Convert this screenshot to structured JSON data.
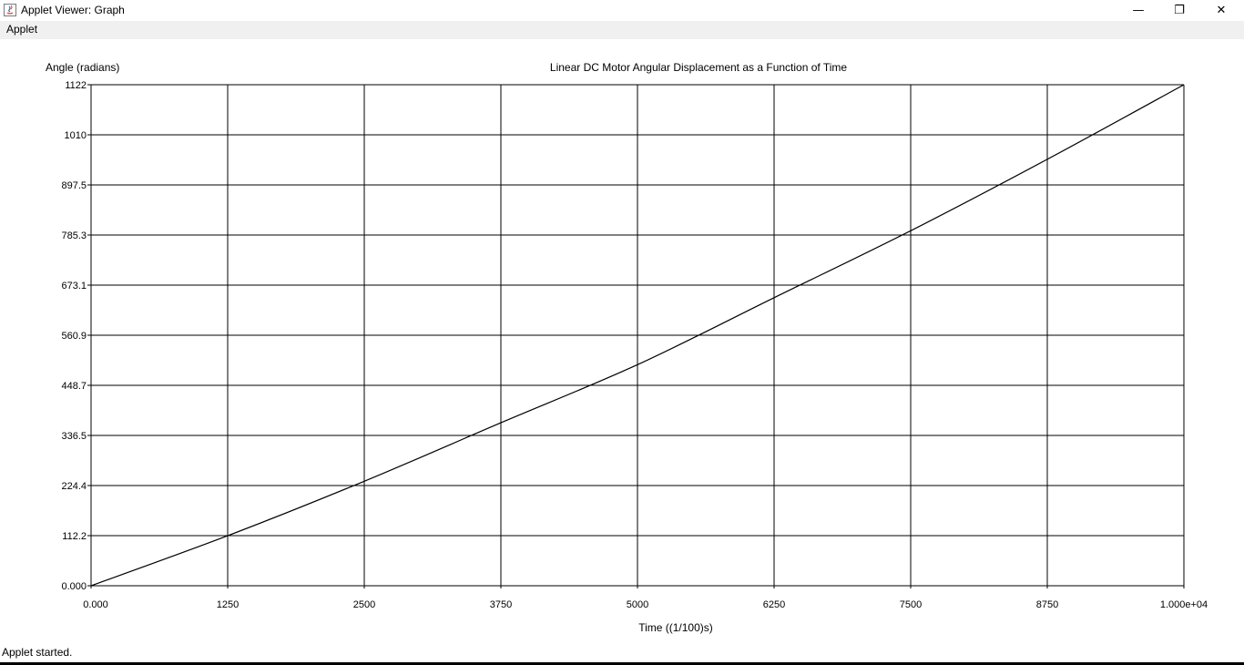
{
  "window": {
    "title": "Applet Viewer: Graph",
    "controls": {
      "minimize": "—",
      "maximize": "❐",
      "close": "✕"
    }
  },
  "menu": {
    "items": [
      "Applet"
    ]
  },
  "status_bar": {
    "text": "Applet started."
  },
  "chart_data": {
    "type": "line",
    "title": "Linear DC Motor Angular Displacement as a Function of Time",
    "xlabel": "Time ((1/100)s)",
    "ylabel": "Angle (radians)",
    "xlim": [
      0,
      10000
    ],
    "ylim": [
      0,
      1122
    ],
    "x_ticks": [
      "0.000",
      "1250",
      "2500",
      "3750",
      "5000",
      "6250",
      "7500",
      "8750",
      "1.000e+04"
    ],
    "y_ticks": [
      "0.000",
      "112.2",
      "224.4",
      "336.5",
      "448.7",
      "560.9",
      "673.1",
      "785.3",
      "897.5",
      "1010",
      "1122"
    ],
    "grid": true,
    "line_color": "#000000",
    "series": [
      {
        "x": [
          0,
          1250,
          2500,
          3750,
          5000,
          6250,
          7500,
          8750,
          10000
        ],
        "values": [
          0,
          112,
          234,
          365,
          495,
          645,
          795,
          955,
          1122
        ]
      }
    ]
  }
}
